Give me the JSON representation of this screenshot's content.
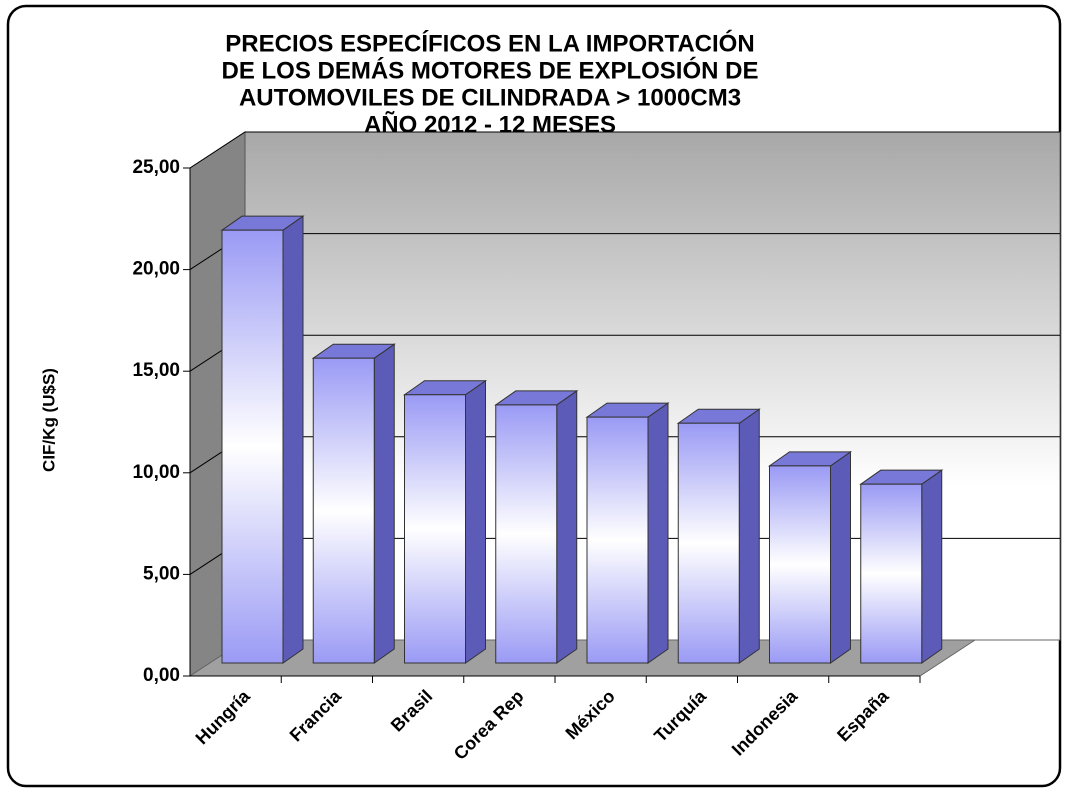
{
  "chart_data": {
    "type": "bar3d",
    "title": [
      "PRECIOS ESPECÍFICOS EN LA IMPORTACIÓN",
      "DE LOS DEMÁS MOTORES DE EXPLOSIÓN DE",
      "AUTOMOVILES DE CILINDRADA > 1000CM3",
      "AÑO 2012 - 12 MESES"
    ],
    "y_label": "CIF/Kg (U$S)",
    "categories": [
      "Hungría",
      "Francia",
      "Brasil",
      "Corea Rep",
      "México",
      "Turquía",
      "Indonesia",
      "España"
    ],
    "values": [
      21.3,
      15.0,
      13.2,
      12.7,
      12.1,
      11.8,
      9.7,
      8.8
    ],
    "color": "#9a9af5",
    "ylim": [
      0,
      25
    ],
    "yticks": [
      {
        "value": 0,
        "label": "0,00"
      },
      {
        "value": 5,
        "label": "5,00"
      },
      {
        "value": 10,
        "label": "10,00"
      },
      {
        "value": 15,
        "label": "15,00"
      },
      {
        "value": 20,
        "label": "20,00"
      },
      {
        "value": 25,
        "label": "25,00"
      }
    ],
    "grid": true
  }
}
